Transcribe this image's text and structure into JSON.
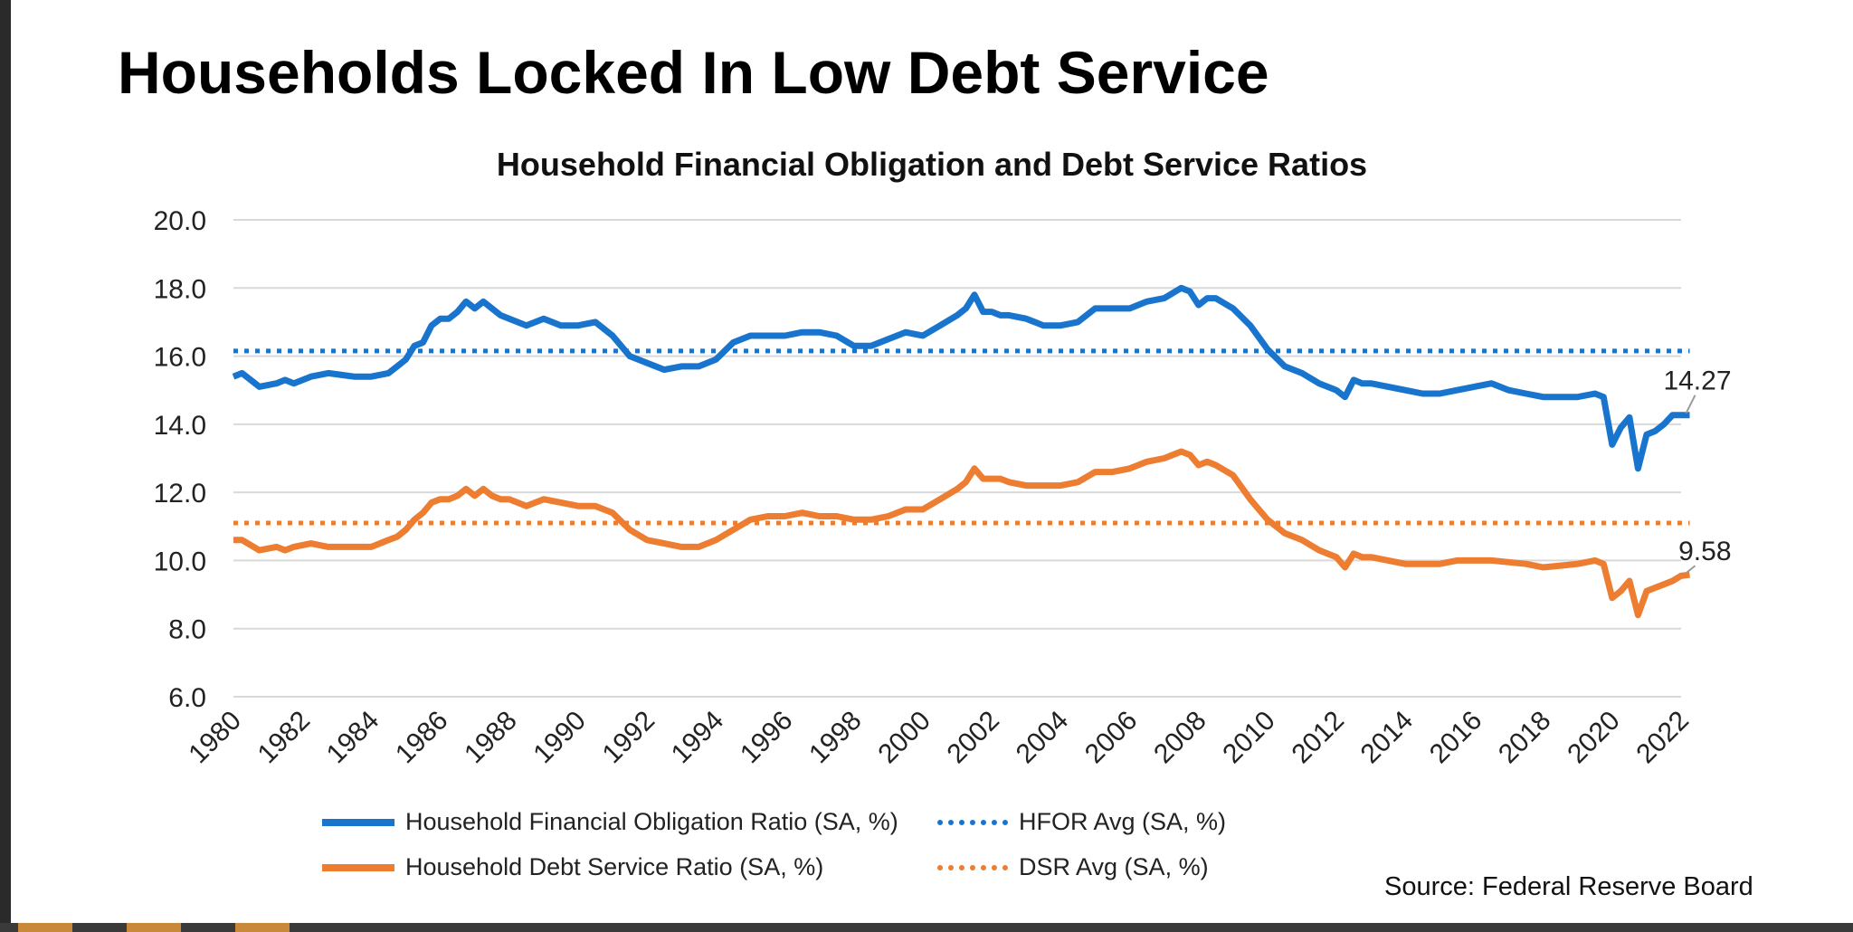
{
  "slide_title": "Households Locked In Low Debt Service",
  "source": "Source: Federal Reserve Board",
  "colors": {
    "hfor": "#1874CD",
    "dsr": "#ED7D31",
    "grid": "#D9D9D9",
    "text": "#222222"
  },
  "chart_data": {
    "type": "line",
    "title": "Household Financial Obligation and Debt Service Ratios",
    "xlabel": "",
    "ylabel": "",
    "ylim": [
      6,
      20
    ],
    "xlim": [
      1980,
      2022
    ],
    "y_ticks": [
      "6.0",
      "8.0",
      "10.0",
      "12.0",
      "14.0",
      "16.0",
      "18.0",
      "20.0"
    ],
    "x_ticks": [
      "1980",
      "1982",
      "1984",
      "1986",
      "1988",
      "1990",
      "1992",
      "1994",
      "1996",
      "1998",
      "2000",
      "2002",
      "2004",
      "2006",
      "2008",
      "2010",
      "2012",
      "2014",
      "2016",
      "2018",
      "2020",
      "2022"
    ],
    "grid": "horizontal",
    "legend_position": "bottom",
    "series": [
      {
        "name": "Household Financial Obligation Ratio (SA, %)",
        "style": "solid",
        "color": "#1874CD",
        "x": [
          1980,
          1980.25,
          1980.75,
          1981.25,
          1981.5,
          1981.75,
          1982.25,
          1982.75,
          1983.5,
          1984,
          1984.5,
          1984.75,
          1985,
          1985.25,
          1985.5,
          1985.75,
          1986,
          1986.25,
          1986.5,
          1986.75,
          1987,
          1987.25,
          1987.5,
          1987.75,
          1988,
          1988.5,
          1989,
          1989.5,
          1990,
          1990.5,
          1991,
          1991.5,
          1992,
          1992.5,
          1993,
          1993.5,
          1994,
          1994.5,
          1995,
          1995.5,
          1996,
          1996.5,
          1997,
          1997.5,
          1998,
          1998.5,
          1999,
          1999.5,
          2000,
          2000.5,
          2001,
          2001.25,
          2001.5,
          2001.75,
          2002,
          2002.25,
          2002.5,
          2003,
          2003.5,
          2004,
          2004.5,
          2005,
          2005.5,
          2006,
          2006.5,
          2007,
          2007.5,
          2007.75,
          2008,
          2008.25,
          2008.5,
          2009,
          2009.5,
          2010,
          2010.5,
          2011,
          2011.5,
          2012,
          2012.25,
          2012.5,
          2012.75,
          2013,
          2013.5,
          2014,
          2014.5,
          2015,
          2015.5,
          2016,
          2016.5,
          2017,
          2017.5,
          2018,
          2018.5,
          2019,
          2019.5,
          2019.75,
          2020,
          2020.25,
          2020.5,
          2020.75,
          2021,
          2021.25,
          2021.5,
          2021.75,
          2022,
          2022.25
        ],
        "values": [
          15.4,
          15.5,
          15.1,
          15.2,
          15.3,
          15.2,
          15.4,
          15.5,
          15.4,
          15.4,
          15.5,
          15.7,
          15.9,
          16.3,
          16.4,
          16.9,
          17.1,
          17.1,
          17.3,
          17.6,
          17.4,
          17.6,
          17.4,
          17.2,
          17.1,
          16.9,
          17.1,
          16.9,
          16.9,
          17.0,
          16.6,
          16.0,
          15.8,
          15.6,
          15.7,
          15.7,
          15.9,
          16.4,
          16.6,
          16.6,
          16.6,
          16.7,
          16.7,
          16.6,
          16.3,
          16.3,
          16.5,
          16.7,
          16.6,
          16.9,
          17.2,
          17.4,
          17.8,
          17.3,
          17.3,
          17.2,
          17.2,
          17.1,
          16.9,
          16.9,
          17.0,
          17.4,
          17.4,
          17.4,
          17.6,
          17.7,
          18.0,
          17.9,
          17.5,
          17.7,
          17.7,
          17.4,
          16.9,
          16.2,
          15.7,
          15.5,
          15.2,
          15.0,
          14.8,
          15.3,
          15.2,
          15.2,
          15.1,
          15.0,
          14.9,
          14.9,
          15.0,
          15.1,
          15.2,
          15.0,
          14.9,
          14.8,
          14.8,
          14.8,
          14.9,
          14.8,
          13.4,
          13.9,
          14.2,
          12.7,
          13.7,
          13.8,
          14.0,
          14.27,
          14.27,
          14.27
        ]
      },
      {
        "name": "HFOR Avg (SA, %)",
        "style": "dotted",
        "color": "#1874CD",
        "x": [
          1980,
          2022.25
        ],
        "values": [
          16.15,
          16.15
        ]
      },
      {
        "name": "Household Debt Service Ratio (SA, %)",
        "style": "solid",
        "color": "#ED7D31",
        "x": [
          1980,
          1980.25,
          1980.75,
          1981.25,
          1981.5,
          1981.75,
          1982.25,
          1982.75,
          1983.5,
          1984,
          1984.5,
          1984.75,
          1985,
          1985.25,
          1985.5,
          1985.75,
          1986,
          1986.25,
          1986.5,
          1986.75,
          1987,
          1987.25,
          1987.5,
          1987.75,
          1988,
          1988.5,
          1989,
          1989.5,
          1990,
          1990.5,
          1991,
          1991.5,
          1992,
          1992.5,
          1993,
          1993.5,
          1994,
          1994.5,
          1995,
          1995.5,
          1996,
          1996.5,
          1997,
          1997.5,
          1998,
          1998.5,
          1999,
          1999.5,
          2000,
          2000.5,
          2001,
          2001.25,
          2001.5,
          2001.75,
          2002,
          2002.25,
          2002.5,
          2003,
          2003.5,
          2004,
          2004.5,
          2005,
          2005.5,
          2006,
          2006.5,
          2007,
          2007.5,
          2007.75,
          2008,
          2008.25,
          2008.5,
          2009,
          2009.5,
          2010,
          2010.5,
          2011,
          2011.5,
          2012,
          2012.25,
          2012.5,
          2012.75,
          2013,
          2013.5,
          2014,
          2014.5,
          2015,
          2015.5,
          2016,
          2016.5,
          2017,
          2017.5,
          2018,
          2018.5,
          2019,
          2019.5,
          2019.75,
          2020,
          2020.25,
          2020.5,
          2020.75,
          2021,
          2021.25,
          2021.5,
          2021.75,
          2022,
          2022.25
        ],
        "values": [
          10.6,
          10.6,
          10.3,
          10.4,
          10.3,
          10.4,
          10.5,
          10.4,
          10.4,
          10.4,
          10.6,
          10.7,
          10.9,
          11.2,
          11.4,
          11.7,
          11.8,
          11.8,
          11.9,
          12.1,
          11.9,
          12.1,
          11.9,
          11.8,
          11.8,
          11.6,
          11.8,
          11.7,
          11.6,
          11.6,
          11.4,
          10.9,
          10.6,
          10.5,
          10.4,
          10.4,
          10.6,
          10.9,
          11.2,
          11.3,
          11.3,
          11.4,
          11.3,
          11.3,
          11.2,
          11.2,
          11.3,
          11.5,
          11.5,
          11.8,
          12.1,
          12.3,
          12.7,
          12.4,
          12.4,
          12.4,
          12.3,
          12.2,
          12.2,
          12.2,
          12.3,
          12.6,
          12.6,
          12.7,
          12.9,
          13.0,
          13.2,
          13.1,
          12.8,
          12.9,
          12.8,
          12.5,
          11.8,
          11.2,
          10.8,
          10.6,
          10.3,
          10.1,
          9.8,
          10.2,
          10.1,
          10.1,
          10.0,
          9.9,
          9.9,
          9.9,
          10.0,
          10.0,
          10.0,
          9.95,
          9.9,
          9.8,
          9.85,
          9.9,
          10.0,
          9.9,
          8.9,
          9.1,
          9.4,
          8.4,
          9.1,
          9.2,
          9.3,
          9.4,
          9.55,
          9.58
        ]
      },
      {
        "name": "DSR Avg (SA, %)",
        "style": "dotted",
        "color": "#ED7D31",
        "x": [
          1980,
          2022.25
        ],
        "values": [
          11.1,
          11.1
        ]
      }
    ],
    "annotations": [
      {
        "label": "14.27",
        "series": "Household Financial Obligation Ratio (SA, %)"
      },
      {
        "label": "9.58",
        "series": "Household Debt Service Ratio (SA, %)"
      }
    ]
  }
}
